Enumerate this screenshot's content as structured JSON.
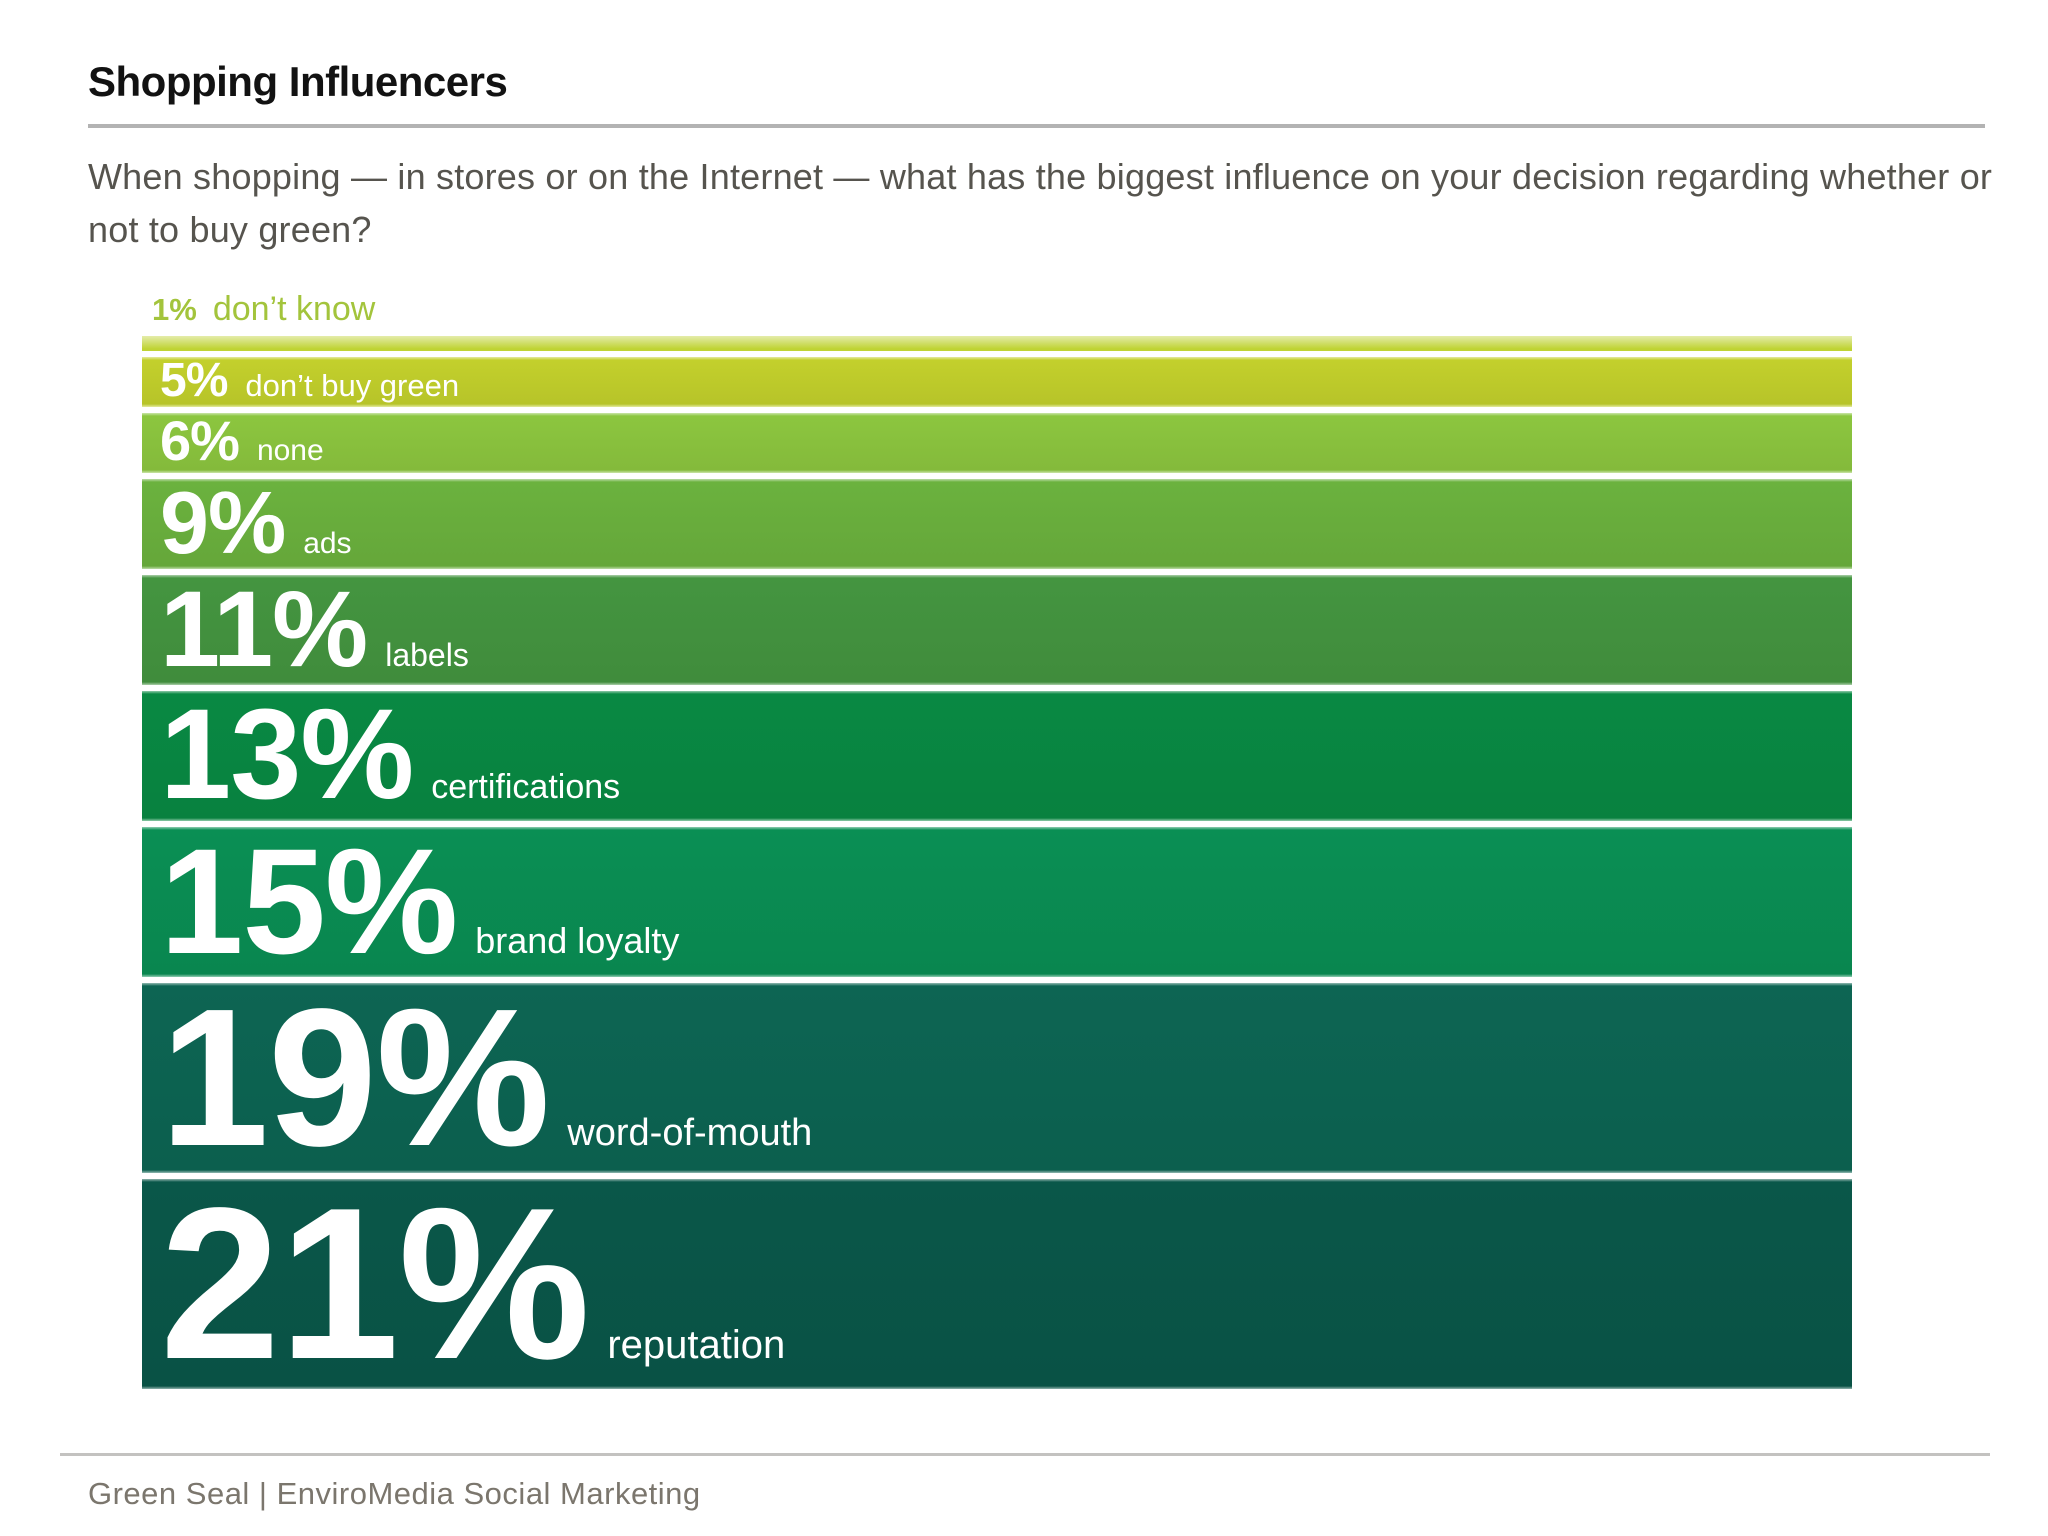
{
  "header": {
    "title": "Shopping Influencers",
    "question": "When shopping — in stores or on the Internet — what has the biggest influence on your decision regarding whether or not to buy green?"
  },
  "footer": {
    "credit": "Green Seal  |  EnviroMedia Social Marketing"
  },
  "colors": {
    "title_text": "#121212",
    "subtitle_text": "#56544e",
    "rule_gray": "#b3b3b3",
    "outside_label_green": "#a3c43c",
    "bar_text": "#ffffff"
  },
  "chart_data": {
    "type": "bar",
    "orientation": "horizontal rows, sorted ascending top to bottom, uniform full width; bar thickness encodes value",
    "title": "Shopping Influencers",
    "question": "When shopping — in stores or on the Internet — what has the biggest influence on your decision regarding whether or not to buy green?",
    "unit": "%",
    "categories": [
      "don’t know",
      "don’t buy green",
      "none",
      "ads",
      "labels",
      "certifications",
      "brand loyalty",
      "word-of-mouth",
      "reputation"
    ],
    "values": [
      1,
      5,
      6,
      9,
      11,
      13,
      15,
      19,
      21
    ],
    "legend": "none",
    "source": "Green Seal | EnviroMedia Social Marketing",
    "bars": [
      {
        "pct_label": "1%",
        "label": "don’t know",
        "value": 1,
        "color": "#bfd334",
        "color_top": "#e4ecaa",
        "label_outside": true
      },
      {
        "pct_label": "5%",
        "label": "don’t buy green",
        "value": 5,
        "color": "#c3d02c"
      },
      {
        "pct_label": "6%",
        "label": "none",
        "value": 6,
        "color": "#8cc63f"
      },
      {
        "pct_label": "9%",
        "label": "ads",
        "value": 9,
        "color": "#6bb23e"
      },
      {
        "pct_label": "11%",
        "label": "labels",
        "value": 11,
        "color": "#449540"
      },
      {
        "pct_label": "13%",
        "label": "certifications",
        "value": 13,
        "color": "#098943"
      },
      {
        "pct_label": "15%",
        "label": "brand loyalty",
        "value": 15,
        "color": "#0a8f54"
      },
      {
        "pct_label": "19%",
        "label": "word-of-mouth",
        "value": 19,
        "color": "#0d6553"
      },
      {
        "pct_label": "21%",
        "label": "reputation",
        "value": 21,
        "color": "#0a5749"
      }
    ]
  }
}
